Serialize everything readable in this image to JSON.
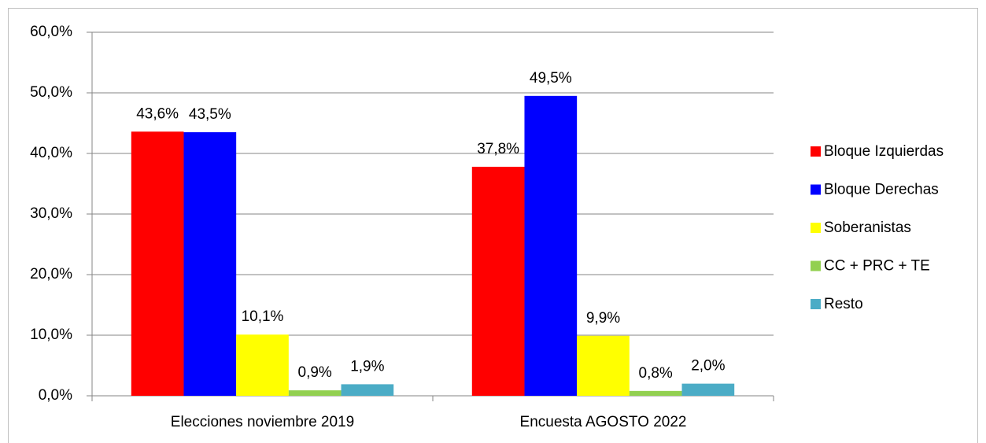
{
  "chart_data": {
    "type": "bar",
    "categories": [
      "Elecciones noviembre 2019",
      "Encuesta AGOSTO 2022"
    ],
    "series": [
      {
        "name": "Bloque Izquierdas",
        "color": "#ff0000",
        "values": [
          43.6,
          37.8
        ],
        "value_labels": [
          "43,6%",
          "37,8%"
        ]
      },
      {
        "name": "Bloque Derechas",
        "color": "#0000ff",
        "values": [
          43.5,
          49.5
        ],
        "value_labels": [
          "43,5%",
          "49,5%"
        ]
      },
      {
        "name": "Soberanistas",
        "color": "#ffff00",
        "values": [
          10.1,
          9.9
        ],
        "value_labels": [
          "10,1%",
          "9,9%"
        ]
      },
      {
        "name": "CC + PRC + TE",
        "color": "#92d050",
        "values": [
          0.9,
          0.8
        ],
        "value_labels": [
          "0,9%",
          "0,8%"
        ]
      },
      {
        "name": "Resto",
        "color": "#4bacc6",
        "values": [
          1.9,
          2.0
        ],
        "value_labels": [
          "1,9%",
          "2,0%"
        ]
      }
    ],
    "ylim": [
      0,
      60
    ],
    "yticks": [
      {
        "value": 0,
        "label": "0,0%"
      },
      {
        "value": 10,
        "label": "10,0%"
      },
      {
        "value": 20,
        "label": "20,0%"
      },
      {
        "value": 30,
        "label": "30,0%"
      },
      {
        "value": 40,
        "label": "40,0%"
      },
      {
        "value": 50,
        "label": "50,0%"
      },
      {
        "value": 60,
        "label": "60,0%"
      }
    ],
    "grid": true,
    "legend": "right"
  }
}
